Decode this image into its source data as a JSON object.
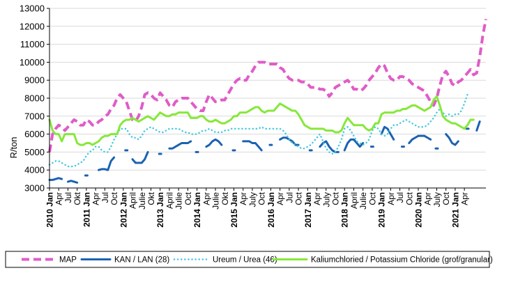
{
  "chart_data": {
    "type": "line",
    "ylabel": "R/ton",
    "ylim": [
      3000,
      13000
    ],
    "yticks": [
      3000,
      4000,
      5000,
      6000,
      7000,
      8000,
      9000,
      10000,
      11000,
      12000,
      13000
    ],
    "grid": "horizontal",
    "legend_position": "bottom",
    "x_tick_labels": [
      {
        "month": 0,
        "label": "2010 Jan",
        "bold": true
      },
      {
        "month": 3,
        "label": "Apr"
      },
      {
        "month": 6,
        "label": "Jul"
      },
      {
        "month": 9,
        "label": "Okt"
      },
      {
        "month": 12,
        "label": "2011 Jan",
        "bold": true
      },
      {
        "month": 15,
        "label": "Apr"
      },
      {
        "month": 18,
        "label": "Jul"
      },
      {
        "month": 21,
        "label": "Oct"
      },
      {
        "month": 24,
        "label": "2012 Jan",
        "bold": true
      },
      {
        "month": 27,
        "label": "April"
      },
      {
        "month": 30,
        "label": "Julie"
      },
      {
        "month": 33,
        "label": "Okt"
      },
      {
        "month": 36,
        "label": "2013 Jan",
        "bold": true
      },
      {
        "month": 39,
        "label": "April"
      },
      {
        "month": 42,
        "label": "Julie"
      },
      {
        "month": 45,
        "label": "Oct"
      },
      {
        "month": 48,
        "label": "2014 Jan",
        "bold": true
      },
      {
        "month": 51,
        "label": "Apr"
      },
      {
        "month": 54,
        "label": "Julie"
      },
      {
        "month": 57,
        "label": "Okt"
      },
      {
        "month": 60,
        "label": "2015 Jan",
        "bold": true
      },
      {
        "month": 63,
        "label": "Apr"
      },
      {
        "month": 66,
        "label": "July"
      },
      {
        "month": 69,
        "label": "Oct"
      },
      {
        "month": 72,
        "label": "2016 Jan",
        "bold": true
      },
      {
        "month": 75,
        "label": "Apr"
      },
      {
        "month": 78,
        "label": "Jul"
      },
      {
        "month": 81,
        "label": "Oct"
      },
      {
        "month": 84,
        "label": "2017 Jan",
        "bold": true
      },
      {
        "month": 87,
        "label": "Apr"
      },
      {
        "month": 90,
        "label": "July"
      },
      {
        "month": 93,
        "label": "Oct"
      },
      {
        "month": 96,
        "label": "2018 Jan",
        "bold": true
      },
      {
        "month": 99,
        "label": "April"
      },
      {
        "month": 102,
        "label": "Julie"
      },
      {
        "month": 105,
        "label": "Oct"
      },
      {
        "month": 108,
        "label": "2019 Jan",
        "bold": true
      },
      {
        "month": 111,
        "label": "Apr"
      },
      {
        "month": 114,
        "label": "Jul"
      },
      {
        "month": 117,
        "label": "Oct"
      },
      {
        "month": 120,
        "label": "2020 Jan",
        "bold": true
      },
      {
        "month": 123,
        "label": "Apr"
      },
      {
        "month": 126,
        "label": "July"
      },
      {
        "month": 129,
        "label": "Oct"
      },
      {
        "month": 132,
        "label": "2021 Jan",
        "bold": true
      },
      {
        "month": 135,
        "label": "Apr"
      }
    ],
    "series": [
      {
        "name": "MAP",
        "color": "#e05cc8",
        "style": "dashed",
        "values": [
          5000,
          6000,
          6300,
          6500,
          6400,
          6200,
          6400,
          6600,
          6800,
          6700,
          6500,
          6500,
          6800,
          6700,
          6500,
          6500,
          6700,
          6800,
          7000,
          7100,
          7400,
          7600,
          8000,
          8200,
          8000,
          7800,
          7300,
          6800,
          6700,
          7000,
          7500,
          8200,
          8300,
          8200,
          8000,
          7900,
          8300,
          8100,
          7900,
          7600,
          7500,
          7800,
          7900,
          8000,
          8000,
          8000,
          7800,
          7600,
          7400,
          7300,
          7300,
          7800,
          8200,
          8000,
          7800,
          7800,
          7900,
          7900,
          8200,
          8500,
          8800,
          9000,
          9100,
          9000,
          9000,
          9300,
          9500,
          9800,
          10000,
          10000,
          10000,
          9900,
          9900,
          9900,
          9900,
          9700,
          9600,
          9300,
          9100,
          9000,
          9000,
          9000,
          8900,
          8900,
          8800,
          8600,
          8600,
          8600,
          8500,
          8500,
          8400,
          8100,
          8300,
          8600,
          8700,
          8800,
          8900,
          9000,
          8800,
          8500,
          8500,
          8400,
          8500,
          8700,
          9000,
          9200,
          9400,
          9700,
          9900,
          9800,
          9400,
          9100,
          9000,
          9000,
          9200,
          9200,
          9100,
          9000,
          8800,
          8700,
          8600,
          8500,
          8400,
          8100,
          7800,
          7600,
          8000,
          8700,
          9300,
          9500,
          9200,
          8800,
          8700,
          8900,
          9000,
          9200,
          9400,
          9600,
          9300,
          9400,
          10300,
          11500,
          12400
        ]
      },
      {
        "name": "KAN / LAN (28)",
        "color": "#1a62b1",
        "style": "solid",
        "values": [
          3450,
          3450,
          3500,
          3550,
          3500,
          null,
          3350,
          3400,
          3350,
          3300,
          null,
          null,
          3700,
          null,
          null,
          null,
          4000,
          4050,
          4050,
          4000,
          4500,
          4700,
          null,
          null,
          null,
          5100,
          null,
          4600,
          4400,
          4400,
          4400,
          4600,
          5000,
          null,
          null,
          null,
          4900,
          null,
          null,
          5200,
          5200,
          5300,
          5400,
          5500,
          5500,
          5500,
          5600,
          null,
          5000,
          null,
          null,
          5300,
          5400,
          5600,
          5700,
          5600,
          5400,
          null,
          null,
          null,
          5100,
          null,
          null,
          5600,
          5600,
          5600,
          5500,
          5500,
          5300,
          5100,
          null,
          null,
          5400,
          null,
          null,
          5700,
          5800,
          5800,
          5700,
          5600,
          5400,
          5400,
          null,
          null,
          null,
          5100,
          null,
          null,
          5300,
          5500,
          5600,
          5300,
          5100,
          5000,
          5000,
          null,
          5100,
          5500,
          5700,
          5700,
          5500,
          5300,
          5500,
          null,
          null,
          5300,
          null,
          null,
          6000,
          6400,
          6300,
          6000,
          5700,
          null,
          null,
          5300,
          null,
          5500,
          5700,
          5800,
          5900,
          5900,
          5900,
          5800,
          5700,
          null,
          5200,
          null,
          null,
          6000,
          5800,
          5500,
          5400,
          5600,
          null,
          null,
          6300,
          null,
          null,
          6200,
          6700
        ]
      },
      {
        "name": "Ureum / Urea (46)",
        "color": "#45c8e0",
        "style": "dotted",
        "values": [
          4300,
          4400,
          4500,
          4500,
          4400,
          4300,
          4200,
          4200,
          4200,
          4300,
          4400,
          4500,
          4800,
          5000,
          5100,
          5300,
          5300,
          5100,
          5000,
          5000,
          5300,
          5700,
          6000,
          6300,
          6300,
          6300,
          6000,
          5800,
          5800,
          5700,
          5900,
          6200,
          6300,
          6400,
          6300,
          6200,
          6100,
          6100,
          6200,
          6300,
          6300,
          6300,
          6300,
          6200,
          6100,
          6100,
          6000,
          6000,
          6000,
          6100,
          6200,
          6200,
          6300,
          6200,
          6100,
          6100,
          6100,
          6200,
          6200,
          6300,
          6300,
          6300,
          6300,
          6300,
          6300,
          6300,
          6300,
          6300,
          6300,
          6400,
          6300,
          6300,
          6300,
          6300,
          6300,
          6300,
          6200,
          6000,
          5700,
          5500,
          5400,
          5300,
          5200,
          5200,
          5300,
          5400,
          5600,
          5800,
          6000,
          5600,
          5200,
          5000,
          4900,
          5000,
          5300,
          5700,
          6300,
          6400,
          6200,
          5900,
          5600,
          5500,
          5400,
          5500,
          5700,
          6200,
          6400,
          6300,
          6000,
          5900,
          6000,
          6300,
          6500,
          6500,
          6600,
          6700,
          6800,
          6700,
          6600,
          6500,
          6400,
          6400,
          6400,
          6500,
          6700,
          6900,
          7200,
          7400,
          7200,
          7000,
          7100,
          7000,
          7100,
          7100,
          7300,
          7700,
          8200,
          8200
        ]
      },
      {
        "name": "Kaliumchloried / Potassium Chloride (grof/granular)",
        "color": "#86e83a",
        "style": "solid",
        "values": [
          6800,
          6200,
          6000,
          6000,
          5600,
          6000,
          6000,
          6000,
          6000,
          5500,
          5400,
          5400,
          5500,
          5500,
          5400,
          5500,
          5600,
          5800,
          5900,
          5900,
          6000,
          6000,
          6000,
          6500,
          6700,
          6800,
          6800,
          6900,
          6800,
          6700,
          6800,
          6900,
          7000,
          6900,
          6800,
          7000,
          7200,
          7100,
          7000,
          7000,
          7100,
          7100,
          7200,
          7200,
          7200,
          7200,
          6900,
          6900,
          6900,
          7000,
          7000,
          6800,
          6700,
          6700,
          6800,
          6700,
          6600,
          6600,
          6700,
          6800,
          7000,
          7000,
          7200,
          7200,
          7200,
          7300,
          7400,
          7500,
          7500,
          7300,
          7200,
          7300,
          7300,
          7300,
          7500,
          7700,
          7600,
          7500,
          7400,
          7300,
          7300,
          7100,
          6800,
          6500,
          6400,
          6300,
          6300,
          6300,
          6300,
          6300,
          6200,
          6200,
          6200,
          6100,
          6100,
          6200,
          6600,
          6900,
          6700,
          6500,
          6500,
          6500,
          6500,
          6300,
          6200,
          6300,
          6600,
          6600,
          7100,
          7200,
          7200,
          7200,
          7200,
          7300,
          7300,
          7400,
          7400,
          7500,
          7600,
          7600,
          7500,
          7400,
          7300,
          7400,
          7500,
          7900,
          8100,
          7600,
          7000,
          6800,
          6700,
          6600,
          6600,
          6500,
          6400,
          6300,
          6500,
          6800,
          6800
        ]
      }
    ]
  }
}
